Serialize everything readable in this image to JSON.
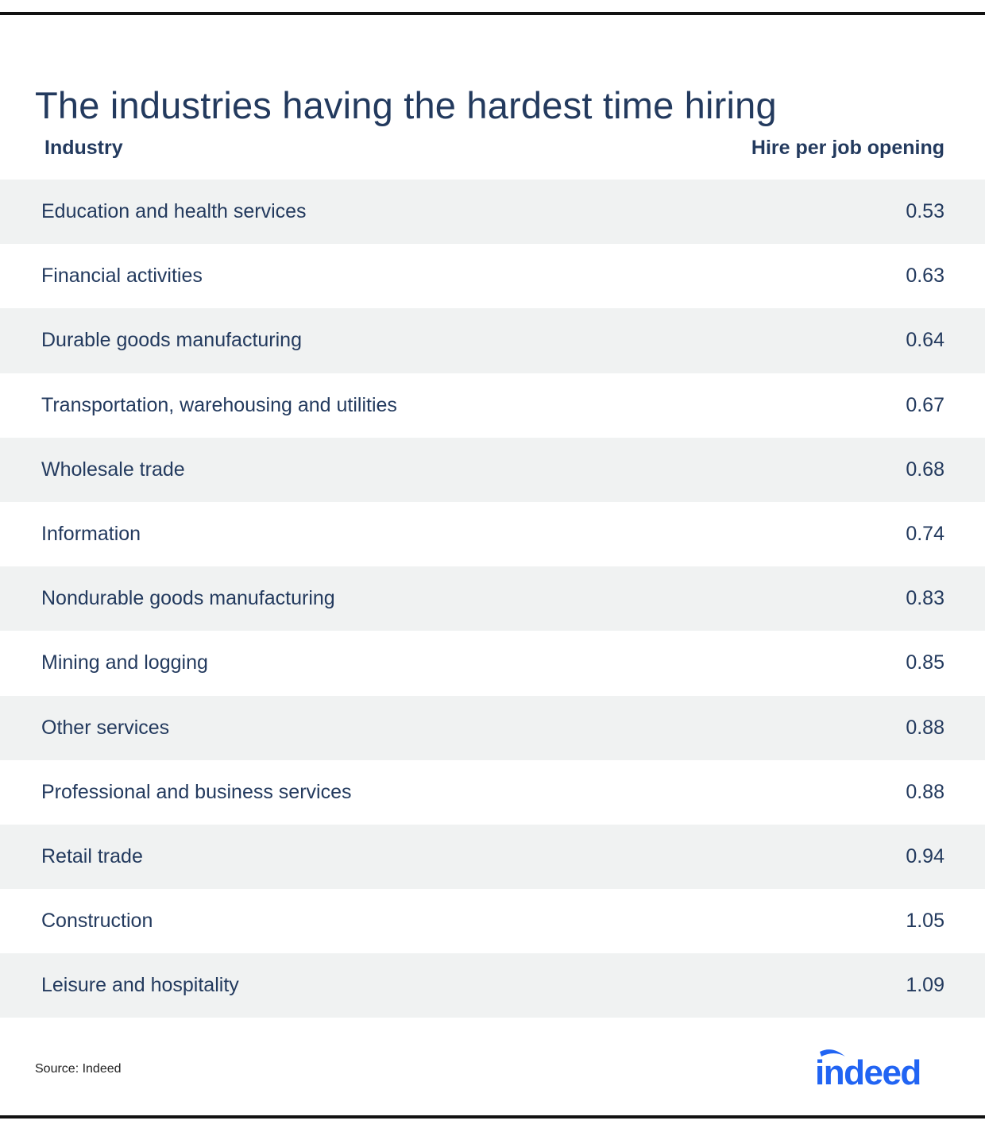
{
  "title": "The industries having the hardest time hiring",
  "columns": {
    "industry": "Industry",
    "value": "Hire per job opening"
  },
  "rows": [
    {
      "industry": "Education and health services",
      "value": "0.53"
    },
    {
      "industry": "Financial activities",
      "value": "0.63"
    },
    {
      "industry": "Durable goods manufacturing",
      "value": "0.64"
    },
    {
      "industry": "Transportation, warehousing and utilities",
      "value": "0.67"
    },
    {
      "industry": "Wholesale trade",
      "value": "0.68"
    },
    {
      "industry": "Information",
      "value": "0.74"
    },
    {
      "industry": "Nondurable goods manufacturing",
      "value": "0.83"
    },
    {
      "industry": "Mining and logging",
      "value": "0.85"
    },
    {
      "industry": "Other services",
      "value": "0.88"
    },
    {
      "industry": "Professional and business services",
      "value": "0.88"
    },
    {
      "industry": "Retail trade",
      "value": "0.94"
    },
    {
      "industry": "Construction",
      "value": "1.05"
    },
    {
      "industry": "Leisure and hospitality",
      "value": "1.09"
    }
  ],
  "source": "Source: Indeed",
  "logo": {
    "text": "indeed",
    "color": "#2164f3",
    "icon": "indeed-logo-icon"
  },
  "colors": {
    "text": "#233a5e",
    "stripe": "#f0f2f2",
    "rule": "#111111"
  },
  "chart_data": {
    "type": "table",
    "title": "The industries having the hardest time hiring",
    "columns": [
      "Industry",
      "Hire per job opening"
    ],
    "categories": [
      "Education and health services",
      "Financial activities",
      "Durable goods manufacturing",
      "Transportation, warehousing and utilities",
      "Wholesale trade",
      "Information",
      "Nondurable goods manufacturing",
      "Mining and logging",
      "Other services",
      "Professional and business services",
      "Retail trade",
      "Construction",
      "Leisure and hospitality"
    ],
    "values": [
      0.53,
      0.63,
      0.64,
      0.67,
      0.68,
      0.74,
      0.83,
      0.85,
      0.88,
      0.88,
      0.94,
      1.05,
      1.09
    ]
  }
}
